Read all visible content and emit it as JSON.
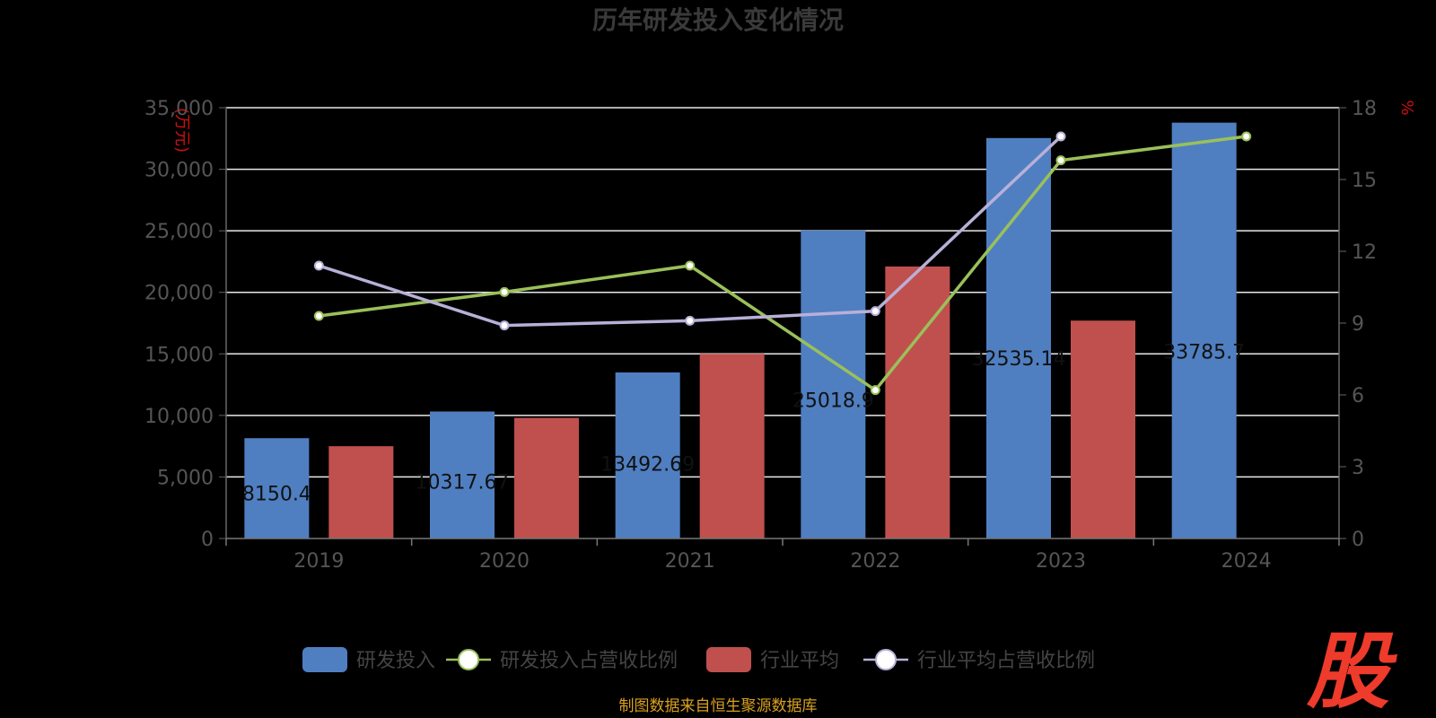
{
  "title": "历年研发投入变化情况",
  "source_note": "制图数据来自恒生聚源数据库",
  "logo_text": "股",
  "chart_data": {
    "type": "bar",
    "categories": [
      "2019",
      "2020",
      "2021",
      "2022",
      "2023",
      "2024"
    ],
    "y_left": {
      "unit": "(万元)",
      "min": 0,
      "max": 35000,
      "ticks": [
        0,
        5000,
        10000,
        15000,
        20000,
        25000,
        30000,
        35000
      ],
      "tick_labels": [
        "0",
        "5,000",
        "10,000",
        "15,000",
        "20,000",
        "25,000",
        "30,000",
        "35,000"
      ]
    },
    "y_right": {
      "unit": "%",
      "min": 0,
      "max": 18,
      "ticks": [
        0,
        3,
        6,
        9,
        12,
        15,
        18
      ],
      "tick_labels": [
        "0",
        "3",
        "6",
        "9",
        "12",
        "15",
        "18"
      ]
    },
    "grid": true,
    "legend_position": "bottom",
    "series": [
      {
        "name": "研发投入",
        "type": "bar",
        "axis": "left",
        "color": "#4f7fc1",
        "values": [
          8150.4,
          10317.67,
          13492.69,
          25018.9,
          32535.14,
          33785.7
        ],
        "labels": [
          "8150.4",
          "10317.67",
          "13492.69",
          "25018.9",
          "32535.14",
          "33785.7"
        ]
      },
      {
        "name": "研发投入占营收比例",
        "type": "line",
        "axis": "right",
        "color": "#9ac05a",
        "values": [
          9.3,
          10.3,
          11.4,
          6.2,
          15.8,
          16.8
        ]
      },
      {
        "name": "行业平均",
        "type": "bar",
        "axis": "left",
        "color": "#c0504d",
        "values": [
          7500,
          9800,
          15000,
          22100,
          17700,
          null
        ]
      },
      {
        "name": "行业平均占营收比例",
        "type": "line",
        "axis": "right",
        "color": "#b8b0d8",
        "values": [
          11.4,
          8.9,
          9.1,
          9.5,
          16.8,
          null
        ]
      }
    ]
  }
}
